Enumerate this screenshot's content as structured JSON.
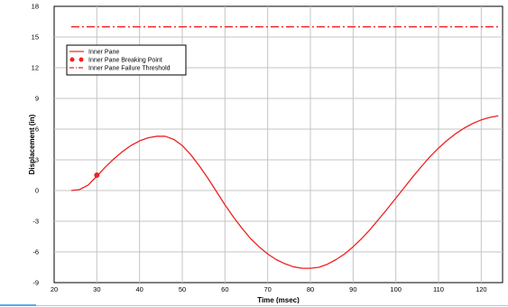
{
  "chart_data": {
    "type": "line",
    "title": "",
    "xlabel": "Time (msec)",
    "ylabel": "Displacement (in)",
    "xlim": [
      20,
      125
    ],
    "ylim": [
      -9,
      18
    ],
    "x_ticks": [
      20,
      30,
      40,
      50,
      60,
      70,
      80,
      90,
      100,
      110,
      120
    ],
    "y_ticks": [
      -9,
      -6,
      -3,
      0,
      3,
      6,
      9,
      12,
      15,
      18
    ],
    "grid": true,
    "legend_position": "top-left",
    "series": [
      {
        "name": "Inner Pane",
        "style": "solid",
        "color": "#ee2222",
        "x": [
          24,
          26,
          28,
          30,
          32,
          34,
          36,
          38,
          40,
          42,
          44,
          46,
          48,
          50,
          52,
          54,
          56,
          58,
          60,
          62,
          64,
          66,
          68,
          70,
          72,
          74,
          76,
          78,
          80,
          82,
          84,
          86,
          88,
          90,
          92,
          94,
          96,
          98,
          100,
          102,
          104,
          106,
          108,
          110,
          112,
          114,
          116,
          118,
          120,
          122,
          124
        ],
        "y": [
          0.0,
          0.1,
          0.55,
          1.4,
          2.3,
          3.1,
          3.8,
          4.4,
          4.85,
          5.15,
          5.3,
          5.3,
          5.0,
          4.4,
          3.5,
          2.4,
          1.2,
          -0.1,
          -1.4,
          -2.6,
          -3.7,
          -4.7,
          -5.5,
          -6.2,
          -6.75,
          -7.15,
          -7.45,
          -7.6,
          -7.6,
          -7.5,
          -7.2,
          -6.75,
          -6.2,
          -5.5,
          -4.7,
          -3.8,
          -2.8,
          -1.8,
          -0.75,
          0.3,
          1.35,
          2.35,
          3.3,
          4.15,
          4.9,
          5.55,
          6.1,
          6.55,
          6.9,
          7.15,
          7.3
        ]
      },
      {
        "name": "Inner Pane Breaking Point",
        "style": "marker",
        "color": "#ee2222",
        "x": [
          30
        ],
        "y": [
          1.5
        ]
      },
      {
        "name": "Inner Pane Failure Threshold",
        "style": "dashdot",
        "color": "#ee2222",
        "x": [
          24,
          124
        ],
        "y": [
          16,
          16
        ]
      }
    ]
  }
}
